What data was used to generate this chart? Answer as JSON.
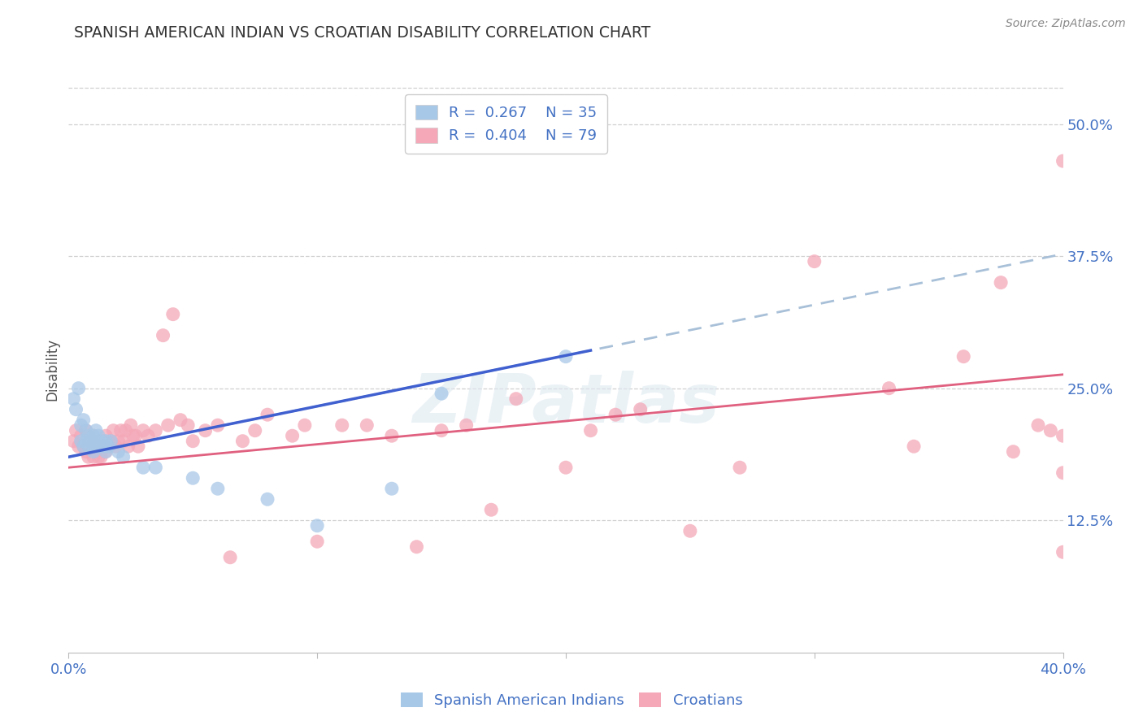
{
  "title": "SPANISH AMERICAN INDIAN VS CROATIAN DISABILITY CORRELATION CHART",
  "source": "Source: ZipAtlas.com",
  "ylabel": "Disability",
  "tick_color": "#4472c4",
  "xmin": 0.0,
  "xmax": 0.4,
  "ymin": 0.0,
  "ymax": 0.535,
  "ytick_labels_right": [
    "50.0%",
    "37.5%",
    "25.0%",
    "12.5%"
  ],
  "ytick_vals_right": [
    0.5,
    0.375,
    0.25,
    0.125
  ],
  "blue_color": "#a8c8e8",
  "pink_color": "#f4a8b8",
  "blue_line_color": "#4060d0",
  "pink_line_color": "#e06080",
  "dashed_line_color": "#a8c0d8",
  "watermark": "ZIPatlas",
  "blue_scatter_x": [
    0.002,
    0.003,
    0.004,
    0.005,
    0.005,
    0.006,
    0.006,
    0.007,
    0.007,
    0.008,
    0.008,
    0.009,
    0.01,
    0.01,
    0.011,
    0.011,
    0.012,
    0.012,
    0.013,
    0.014,
    0.015,
    0.015,
    0.016,
    0.017,
    0.02,
    0.022,
    0.03,
    0.035,
    0.05,
    0.06,
    0.08,
    0.1,
    0.13,
    0.15,
    0.2
  ],
  "blue_scatter_y": [
    0.24,
    0.23,
    0.25,
    0.2,
    0.215,
    0.195,
    0.22,
    0.2,
    0.21,
    0.195,
    0.205,
    0.2,
    0.19,
    0.205,
    0.195,
    0.21,
    0.195,
    0.205,
    0.2,
    0.195,
    0.19,
    0.2,
    0.195,
    0.2,
    0.19,
    0.185,
    0.175,
    0.175,
    0.165,
    0.155,
    0.145,
    0.12,
    0.155,
    0.245,
    0.28
  ],
  "pink_scatter_x": [
    0.002,
    0.003,
    0.004,
    0.005,
    0.006,
    0.007,
    0.007,
    0.008,
    0.008,
    0.009,
    0.01,
    0.01,
    0.011,
    0.011,
    0.012,
    0.012,
    0.013,
    0.013,
    0.014,
    0.014,
    0.015,
    0.015,
    0.016,
    0.017,
    0.018,
    0.019,
    0.02,
    0.021,
    0.022,
    0.023,
    0.024,
    0.025,
    0.026,
    0.027,
    0.028,
    0.03,
    0.032,
    0.035,
    0.038,
    0.04,
    0.042,
    0.045,
    0.048,
    0.05,
    0.055,
    0.06,
    0.065,
    0.07,
    0.075,
    0.08,
    0.09,
    0.095,
    0.1,
    0.11,
    0.12,
    0.13,
    0.14,
    0.15,
    0.16,
    0.17,
    0.18,
    0.2,
    0.21,
    0.22,
    0.23,
    0.25,
    0.27,
    0.3,
    0.33,
    0.34,
    0.36,
    0.375,
    0.38,
    0.39,
    0.395,
    0.4,
    0.4,
    0.4,
    0.4
  ],
  "pink_scatter_y": [
    0.2,
    0.21,
    0.195,
    0.205,
    0.195,
    0.19,
    0.21,
    0.185,
    0.2,
    0.195,
    0.185,
    0.205,
    0.19,
    0.2,
    0.185,
    0.2,
    0.195,
    0.185,
    0.195,
    0.2,
    0.19,
    0.205,
    0.195,
    0.2,
    0.21,
    0.195,
    0.2,
    0.21,
    0.2,
    0.21,
    0.195,
    0.215,
    0.205,
    0.205,
    0.195,
    0.21,
    0.205,
    0.21,
    0.3,
    0.215,
    0.32,
    0.22,
    0.215,
    0.2,
    0.21,
    0.215,
    0.09,
    0.2,
    0.21,
    0.225,
    0.205,
    0.215,
    0.105,
    0.215,
    0.215,
    0.205,
    0.1,
    0.21,
    0.215,
    0.135,
    0.24,
    0.175,
    0.21,
    0.225,
    0.23,
    0.115,
    0.175,
    0.37,
    0.25,
    0.195,
    0.28,
    0.35,
    0.19,
    0.215,
    0.21,
    0.465,
    0.205,
    0.095,
    0.17
  ]
}
